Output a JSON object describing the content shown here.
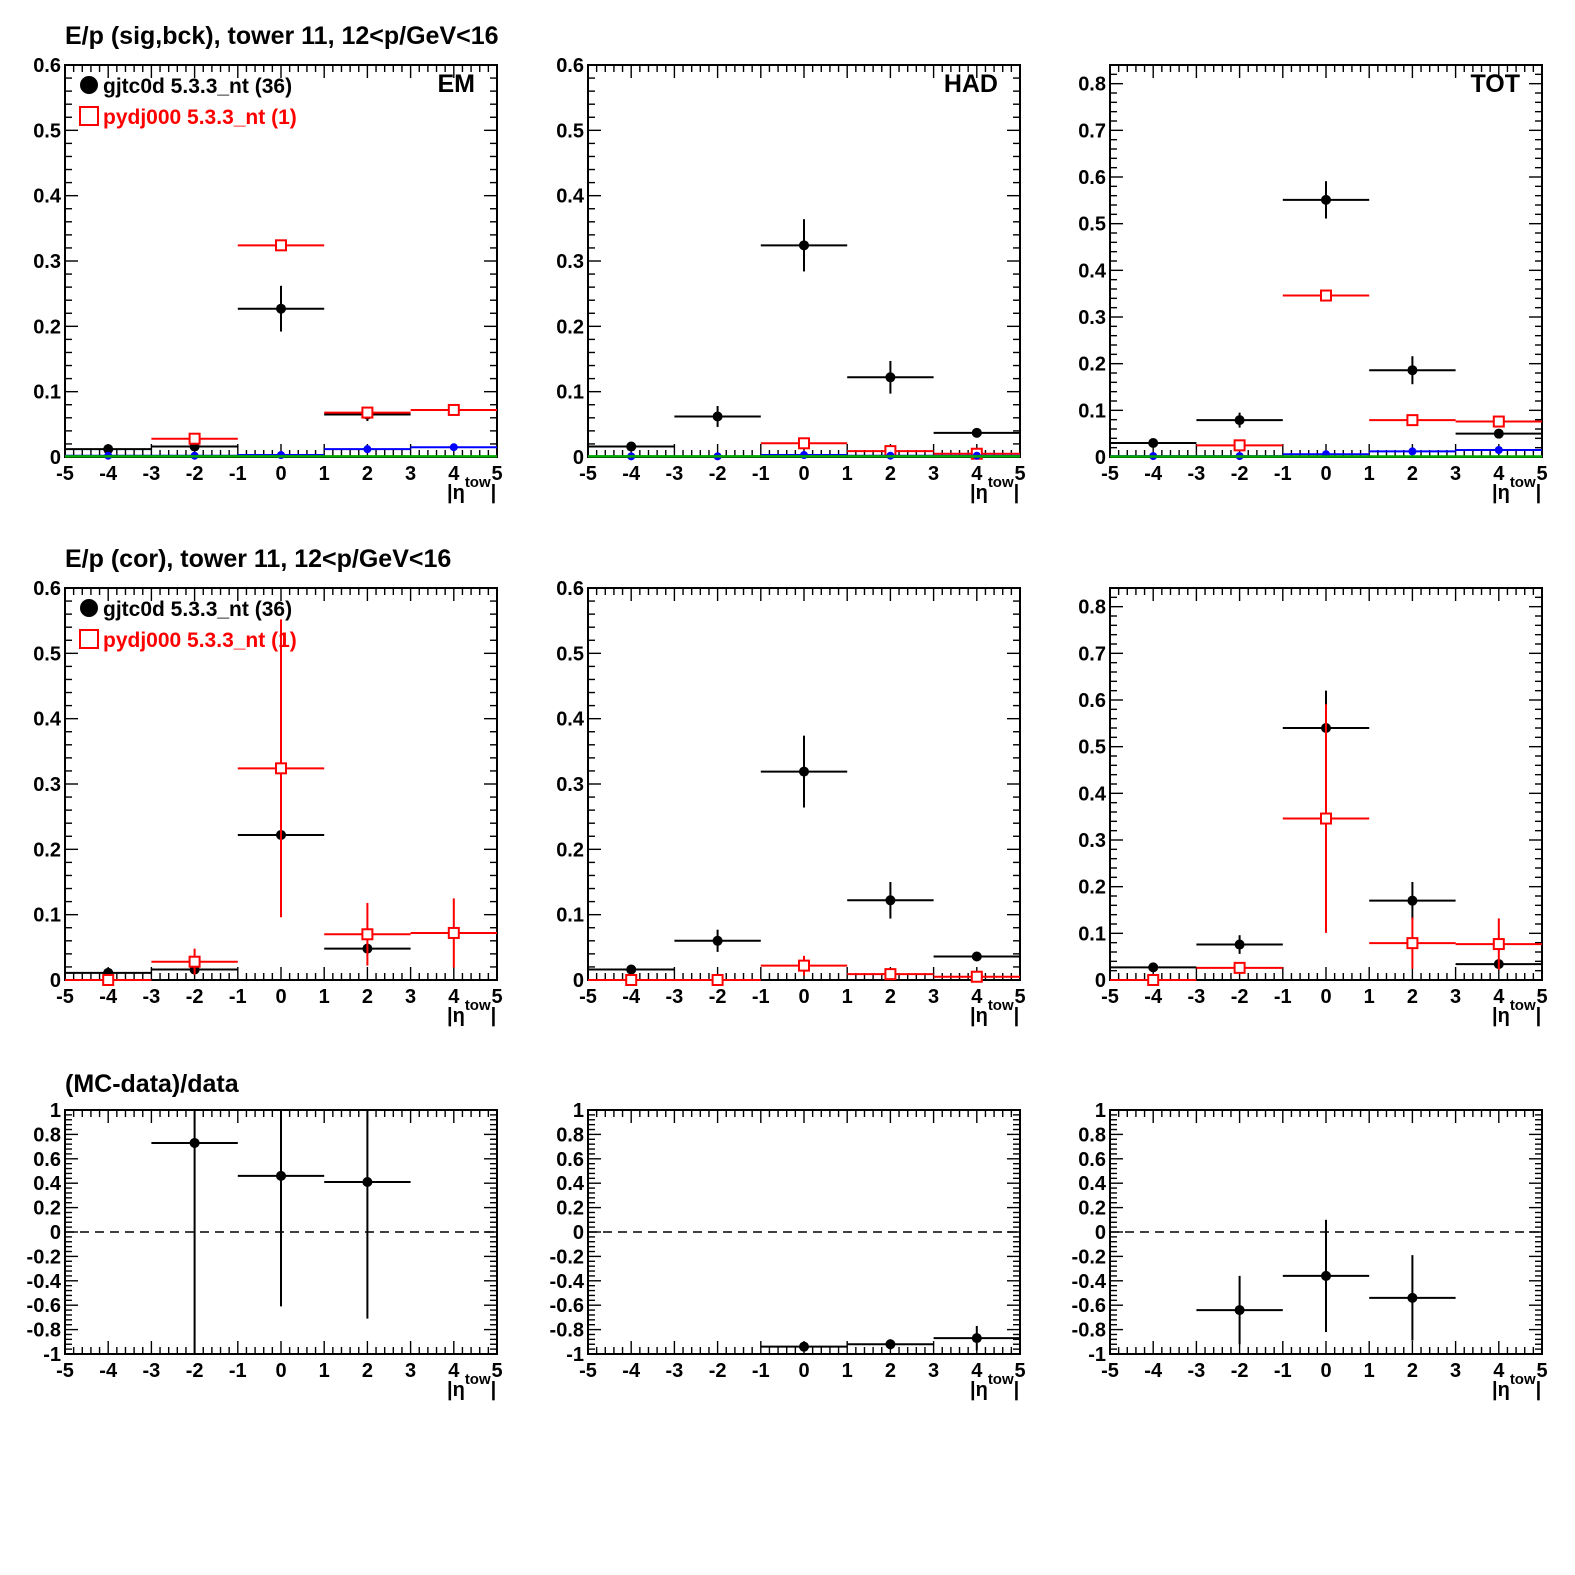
{
  "figure": {
    "background": "#ffffff"
  },
  "colors": {
    "data": "#000000",
    "mc": "#ff0000",
    "blue": "#0000ff",
    "green": "#00aa00"
  },
  "row_titles": [
    "E/p (sig,bck), tower 11, 12<p/GeV<16",
    "E/p (cor), tower 11, 12<p/GeV<16",
    "(MC-data)/data"
  ],
  "legend": {
    "data_label": "gjtc0d 5.3.3_nt (36)",
    "mc_label": "pydj000 5.3.3_nt (1)"
  },
  "xaxis": {
    "ticks": [
      "-5",
      "-4",
      "-3",
      "-2",
      "-1",
      "0",
      "1",
      "2",
      "3",
      "4",
      "5"
    ],
    "label_main": "|η",
    "label_sup": "tow",
    "label_end": "|"
  },
  "chart_data": [
    {
      "id": "r1c1",
      "type": "scatter",
      "row": 0,
      "col": 0,
      "panel_label": "EM",
      "xlim": [
        -5,
        5
      ],
      "ylim": [
        0,
        0.6
      ],
      "grid": false,
      "show_legend": true,
      "zero_line": false,
      "yticks": [
        "0",
        "0.1",
        "0.2",
        "0.3",
        "0.4",
        "0.5",
        "0.6"
      ],
      "series": [
        {
          "name": "gjtc0d 5.3.3_nt (36)",
          "color": "#000000",
          "marker": "dot",
          "points": [
            {
              "x": -4,
              "xerr": 1,
              "y": 0.012,
              "yerr": 0.003
            },
            {
              "x": -2,
              "xerr": 1,
              "y": 0.016,
              "yerr": 0.003
            },
            {
              "x": 0,
              "xerr": 1,
              "y": 0.227,
              "yerr": 0.035
            },
            {
              "x": 2,
              "xerr": 1,
              "y": 0.065,
              "yerr": 0.01
            }
          ]
        },
        {
          "name": "pydj000 5.3.3_nt (1)",
          "color": "#ff0000",
          "marker": "square",
          "points": [
            {
              "x": -2,
              "xerr": 1,
              "y": 0.028,
              "yerr": 0.002
            },
            {
              "x": 0,
              "xerr": 1,
              "y": 0.324,
              "yerr": 0.003
            },
            {
              "x": 2,
              "xerr": 1,
              "y": 0.068,
              "yerr": 0.002
            },
            {
              "x": 4,
              "xerr": 1,
              "y": 0.072,
              "yerr": 0.002
            }
          ]
        },
        {
          "color": "#0000ff",
          "marker": "smalldot",
          "points": [
            {
              "x": -4,
              "xerr": 1,
              "y": 0.002,
              "yerr": 0
            },
            {
              "x": -2,
              "xerr": 1,
              "y": 0.002,
              "yerr": 0
            },
            {
              "x": 0,
              "xerr": 1,
              "y": 0.003,
              "yerr": 0.002
            },
            {
              "x": 2,
              "xerr": 1,
              "y": 0.012,
              "yerr": 0
            },
            {
              "x": 4,
              "xerr": 1,
              "y": 0.015,
              "yerr": 0
            }
          ]
        },
        {
          "color": "#00aa00",
          "marker": "none",
          "points": [
            {
              "x": -4,
              "xerr": 1,
              "y": 0.001,
              "yerr": 0
            },
            {
              "x": -2,
              "xerr": 1,
              "y": 0.001,
              "yerr": 0
            },
            {
              "x": 0,
              "xerr": 1,
              "y": 0.001,
              "yerr": 0
            },
            {
              "x": 2,
              "xerr": 1,
              "y": 0.001,
              "yerr": 0
            },
            {
              "x": 4,
              "xerr": 1,
              "y": 0.001,
              "yerr": 0
            }
          ]
        }
      ]
    },
    {
      "id": "r1c2",
      "type": "scatter",
      "row": 0,
      "col": 1,
      "panel_label": "HAD",
      "xlim": [
        -5,
        5
      ],
      "ylim": [
        0,
        0.6
      ],
      "grid": false,
      "show_legend": false,
      "zero_line": false,
      "yticks": [
        "0",
        "0.1",
        "0.2",
        "0.3",
        "0.4",
        "0.5",
        "0.6"
      ],
      "series": [
        {
          "name": "gjtc0d 5.3.3_nt (36)",
          "color": "#000000",
          "marker": "dot",
          "points": [
            {
              "x": -4,
              "xerr": 1,
              "y": 0.016,
              "yerr": 0.003
            },
            {
              "x": -2,
              "xerr": 1,
              "y": 0.062,
              "yerr": 0.016
            },
            {
              "x": 0,
              "xerr": 1,
              "y": 0.324,
              "yerr": 0.04
            },
            {
              "x": 2,
              "xerr": 1,
              "y": 0.122,
              "yerr": 0.025
            },
            {
              "x": 4,
              "xerr": 1,
              "y": 0.037,
              "yerr": 0.005
            }
          ]
        },
        {
          "name": "pydj000 5.3.3_nt (1)",
          "color": "#ff0000",
          "marker": "square",
          "points": [
            {
              "x": 0,
              "xerr": 1,
              "y": 0.021,
              "yerr": 0.002
            },
            {
              "x": 2,
              "xerr": 1,
              "y": 0.009,
              "yerr": 0.002
            },
            {
              "x": 4,
              "xerr": 1,
              "y": 0.005,
              "yerr": 0.002
            }
          ]
        },
        {
          "color": "#0000ff",
          "marker": "smalldot",
          "points": [
            {
              "x": -4,
              "xerr": 1,
              "y": 0.001,
              "yerr": 0
            },
            {
              "x": -2,
              "xerr": 1,
              "y": 0.001,
              "yerr": 0
            },
            {
              "x": 0,
              "xerr": 1,
              "y": 0.003,
              "yerr": 0
            },
            {
              "x": 2,
              "xerr": 1,
              "y": 0.002,
              "yerr": 0
            },
            {
              "x": 4,
              "xerr": 1,
              "y": 0.002,
              "yerr": 0
            }
          ]
        },
        {
          "color": "#00aa00",
          "marker": "none",
          "points": [
            {
              "x": -4,
              "xerr": 1,
              "y": 0.001,
              "yerr": 0
            },
            {
              "x": -2,
              "xerr": 1,
              "y": 0.001,
              "yerr": 0
            },
            {
              "x": 0,
              "xerr": 1,
              "y": 0.001,
              "yerr": 0
            },
            {
              "x": 2,
              "xerr": 1,
              "y": 0.001,
              "yerr": 0
            },
            {
              "x": 4,
              "xerr": 1,
              "y": 0.001,
              "yerr": 0
            }
          ]
        }
      ]
    },
    {
      "id": "r1c3",
      "type": "scatter",
      "row": 0,
      "col": 2,
      "panel_label": "TOT",
      "xlim": [
        -5,
        5
      ],
      "ylim": [
        0,
        0.84
      ],
      "grid": false,
      "show_legend": false,
      "zero_line": false,
      "yticks": [
        "0",
        "0.1",
        "0.2",
        "0.3",
        "0.4",
        "0.5",
        "0.6",
        "0.7",
        "0.8"
      ],
      "series": [
        {
          "name": "gjtc0d 5.3.3_nt (36)",
          "color": "#000000",
          "marker": "dot",
          "points": [
            {
              "x": -4,
              "xerr": 1,
              "y": 0.03,
              "yerr": 0.005
            },
            {
              "x": -2,
              "xerr": 1,
              "y": 0.079,
              "yerr": 0.016
            },
            {
              "x": 0,
              "xerr": 1,
              "y": 0.551,
              "yerr": 0.04
            },
            {
              "x": 2,
              "xerr": 1,
              "y": 0.186,
              "yerr": 0.03
            },
            {
              "x": 4,
              "xerr": 1,
              "y": 0.05,
              "yerr": 0.005
            }
          ]
        },
        {
          "name": "pydj000 5.3.3_nt (1)",
          "color": "#ff0000",
          "marker": "square",
          "points": [
            {
              "x": -2,
              "xerr": 1,
              "y": 0.025,
              "yerr": 0.002
            },
            {
              "x": 0,
              "xerr": 1,
              "y": 0.346,
              "yerr": 0.003
            },
            {
              "x": 2,
              "xerr": 1,
              "y": 0.079,
              "yerr": 0.002
            },
            {
              "x": 4,
              "xerr": 1,
              "y": 0.076,
              "yerr": 0.002
            }
          ]
        },
        {
          "color": "#0000ff",
          "marker": "smalldot",
          "points": [
            {
              "x": -4,
              "xerr": 1,
              "y": 0.002,
              "yerr": 0
            },
            {
              "x": -2,
              "xerr": 1,
              "y": 0.002,
              "yerr": 0
            },
            {
              "x": 0,
              "xerr": 1,
              "y": 0.006,
              "yerr": 0.003
            },
            {
              "x": 2,
              "xerr": 1,
              "y": 0.012,
              "yerr": 0
            },
            {
              "x": 4,
              "xerr": 1,
              "y": 0.015,
              "yerr": 0
            }
          ]
        },
        {
          "color": "#00aa00",
          "marker": "none",
          "points": [
            {
              "x": -4,
              "xerr": 1,
              "y": 0.001,
              "yerr": 0
            },
            {
              "x": -2,
              "xerr": 1,
              "y": 0.001,
              "yerr": 0
            },
            {
              "x": 0,
              "xerr": 1,
              "y": 0.001,
              "yerr": 0
            },
            {
              "x": 2,
              "xerr": 1,
              "y": 0.001,
              "yerr": 0
            },
            {
              "x": 4,
              "xerr": 1,
              "y": 0.001,
              "yerr": 0
            }
          ]
        }
      ]
    },
    {
      "id": "r2c1",
      "type": "scatter",
      "row": 1,
      "col": 0,
      "panel_label": "",
      "xlim": [
        -5,
        5
      ],
      "ylim": [
        0,
        0.6
      ],
      "grid": false,
      "show_legend": true,
      "zero_line": false,
      "yticks": [
        "0",
        "0.1",
        "0.2",
        "0.3",
        "0.4",
        "0.5",
        "0.6"
      ],
      "series": [
        {
          "name": "gjtc0d 5.3.3_nt (36)",
          "color": "#000000",
          "marker": "dot",
          "points": [
            {
              "x": -4,
              "xerr": 1,
              "y": 0.011,
              "yerr": 0.002
            },
            {
              "x": -2,
              "xerr": 1,
              "y": 0.016,
              "yerr": 0.003
            },
            {
              "x": 0,
              "xerr": 1,
              "y": 0.222,
              "yerr": 0.03
            },
            {
              "x": 2,
              "xerr": 1,
              "y": 0.048,
              "yerr": 0.008
            }
          ]
        },
        {
          "name": "pydj000 5.3.3_nt (1)",
          "color": "#ff0000",
          "marker": "square",
          "points": [
            {
              "x": -4,
              "xerr": 1,
              "y": 0.0,
              "yerr": 0
            },
            {
              "x": -2,
              "xerr": 1,
              "y": 0.028,
              "yerr": 0.02
            },
            {
              "x": 0,
              "xerr": 1,
              "y": 0.324,
              "yerr": 0.228
            },
            {
              "x": 2,
              "xerr": 1,
              "y": 0.07,
              "yerr": 0.048
            },
            {
              "x": 4,
              "xerr": 1,
              "y": 0.072,
              "yerr": 0.053
            }
          ]
        }
      ]
    },
    {
      "id": "r2c2",
      "type": "scatter",
      "row": 1,
      "col": 1,
      "panel_label": "",
      "xlim": [
        -5,
        5
      ],
      "ylim": [
        0,
        0.6
      ],
      "grid": false,
      "show_legend": false,
      "zero_line": false,
      "yticks": [
        "0",
        "0.1",
        "0.2",
        "0.3",
        "0.4",
        "0.5",
        "0.6"
      ],
      "series": [
        {
          "name": "gjtc0d 5.3.3_nt (36)",
          "color": "#000000",
          "marker": "dot",
          "points": [
            {
              "x": -4,
              "xerr": 1,
              "y": 0.016,
              "yerr": 0.003
            },
            {
              "x": -2,
              "xerr": 1,
              "y": 0.06,
              "yerr": 0.017
            },
            {
              "x": 0,
              "xerr": 1,
              "y": 0.319,
              "yerr": 0.055
            },
            {
              "x": 2,
              "xerr": 1,
              "y": 0.122,
              "yerr": 0.028
            },
            {
              "x": 4,
              "xerr": 1,
              "y": 0.036,
              "yerr": 0.006
            }
          ]
        },
        {
          "name": "pydj000 5.3.3_nt (1)",
          "color": "#ff0000",
          "marker": "square",
          "points": [
            {
              "x": -4,
              "xerr": 1,
              "y": 0.0,
              "yerr": 0
            },
            {
              "x": -2,
              "xerr": 1,
              "y": 0.0,
              "yerr": 0
            },
            {
              "x": 0,
              "xerr": 1,
              "y": 0.022,
              "yerr": 0.015
            },
            {
              "x": 2,
              "xerr": 1,
              "y": 0.009,
              "yerr": 0.006
            },
            {
              "x": 4,
              "xerr": 1,
              "y": 0.005,
              "yerr": 0.005
            }
          ]
        }
      ]
    },
    {
      "id": "r2c3",
      "type": "scatter",
      "row": 1,
      "col": 2,
      "panel_label": "",
      "xlim": [
        -5,
        5
      ],
      "ylim": [
        0,
        0.84
      ],
      "grid": false,
      "show_legend": false,
      "zero_line": false,
      "yticks": [
        "0",
        "0.1",
        "0.2",
        "0.3",
        "0.4",
        "0.5",
        "0.6",
        "0.7",
        "0.8"
      ],
      "series": [
        {
          "name": "gjtc0d 5.3.3_nt (36)",
          "color": "#000000",
          "marker": "dot",
          "points": [
            {
              "x": -4,
              "xerr": 1,
              "y": 0.027,
              "yerr": 0.004
            },
            {
              "x": -2,
              "xerr": 1,
              "y": 0.076,
              "yerr": 0.02
            },
            {
              "x": 0,
              "xerr": 1,
              "y": 0.54,
              "yerr": 0.08
            },
            {
              "x": 2,
              "xerr": 1,
              "y": 0.17,
              "yerr": 0.04
            },
            {
              "x": 4,
              "xerr": 1,
              "y": 0.034,
              "yerr": 0.008
            }
          ]
        },
        {
          "name": "pydj000 5.3.3_nt (1)",
          "color": "#ff0000",
          "marker": "square",
          "points": [
            {
              "x": -4,
              "xerr": 1,
              "y": 0.0,
              "yerr": 0
            },
            {
              "x": -2,
              "xerr": 1,
              "y": 0.026,
              "yerr": 0.01
            },
            {
              "x": 0,
              "xerr": 1,
              "y": 0.346,
              "yerr": 0.245
            },
            {
              "x": 2,
              "xerr": 1,
              "y": 0.079,
              "yerr": 0.055
            },
            {
              "x": 4,
              "xerr": 1,
              "y": 0.077,
              "yerr": 0.055
            }
          ]
        }
      ]
    },
    {
      "id": "r3c1",
      "type": "scatter",
      "row": 2,
      "col": 0,
      "panel_label": "",
      "xlim": [
        -5,
        5
      ],
      "ylim": [
        -1,
        1
      ],
      "grid": false,
      "show_legend": false,
      "zero_line": true,
      "yticks": [
        "-1",
        "-0.8",
        "-0.6",
        "-0.4",
        "-0.2",
        "0",
        "0.2",
        "0.4",
        "0.6",
        "0.8",
        "1"
      ],
      "series": [
        {
          "name": "gjtc0d 5.3.3_nt (36)",
          "color": "#000000",
          "marker": "dot",
          "points": [
            {
              "x": -2,
              "xerr": 1,
              "y": 0.73,
              "yerr": 1.73
            },
            {
              "x": 0,
              "xerr": 1,
              "y": 0.46,
              "yerr": 1.07
            },
            {
              "x": 2,
              "xerr": 1,
              "y": 0.41,
              "yerr": 1.12
            }
          ]
        }
      ]
    },
    {
      "id": "r3c2",
      "type": "scatter",
      "row": 2,
      "col": 1,
      "panel_label": "",
      "xlim": [
        -5,
        5
      ],
      "ylim": [
        -1,
        1
      ],
      "grid": false,
      "show_legend": false,
      "zero_line": true,
      "yticks": [
        "-1",
        "-0.8",
        "-0.6",
        "-0.4",
        "-0.2",
        "0",
        "0.2",
        "0.4",
        "0.6",
        "0.8",
        "1"
      ],
      "series": [
        {
          "name": "gjtc0d 5.3.3_nt (36)",
          "color": "#000000",
          "marker": "dot",
          "points": [
            {
              "x": 0,
              "xerr": 1,
              "y": -0.94,
              "yerr": 0.03
            },
            {
              "x": 2,
              "xerr": 1,
              "y": -0.92,
              "yerr": 0.04
            },
            {
              "x": 4,
              "xerr": 1,
              "y": -0.87,
              "yerr": 0.1
            }
          ]
        }
      ]
    },
    {
      "id": "r3c3",
      "type": "scatter",
      "row": 2,
      "col": 2,
      "panel_label": "",
      "xlim": [
        -5,
        5
      ],
      "ylim": [
        -1,
        1
      ],
      "grid": false,
      "show_legend": false,
      "zero_line": true,
      "yticks": [
        "-1",
        "-0.8",
        "-0.6",
        "-0.4",
        "-0.2",
        "0",
        "0.2",
        "0.4",
        "0.6",
        "0.8",
        "1"
      ],
      "series": [
        {
          "name": "gjtc0d 5.3.3_nt (36)",
          "color": "#000000",
          "marker": "dot",
          "points": [
            {
              "x": -2,
              "xerr": 1,
              "y": -0.64,
              "yerr": 0.28
            },
            {
              "x": 0,
              "xerr": 1,
              "y": -0.36,
              "yerr": 0.46
            },
            {
              "x": 2,
              "xerr": 1,
              "y": -0.54,
              "yerr": 0.35
            }
          ]
        }
      ]
    }
  ]
}
